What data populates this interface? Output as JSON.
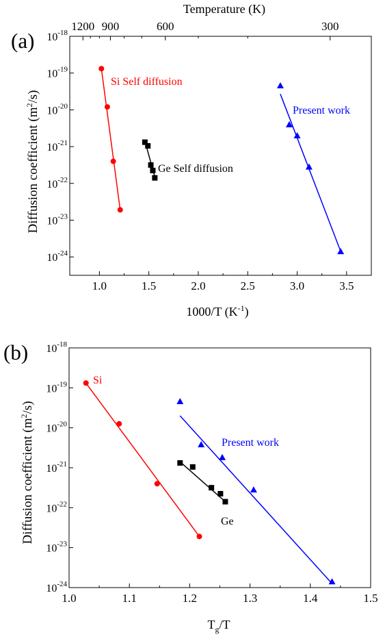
{
  "chart_data": [
    {
      "type": "scatter",
      "panel_label": "(a)",
      "title": "",
      "xlabel": "1000/T (K⁻¹)",
      "ylabel": "Diffusion coefficient (m²/s)",
      "top_axis_label": "Temperature (K)",
      "top_ticks": [
        {
          "label": "1200",
          "value": 1200
        },
        {
          "label": "900",
          "value": 900
        },
        {
          "label": "600",
          "value": 600
        },
        {
          "label": "300",
          "value": 300
        }
      ],
      "xlim": [
        0.7,
        3.75
      ],
      "ylim_log10": [
        -24.5,
        -18
      ],
      "yscale": "log",
      "xticks": [
        1.0,
        1.5,
        2.0,
        2.5,
        3.0,
        3.5
      ],
      "xtick_labels": [
        "1.0",
        "1.5",
        "2.0",
        "2.5",
        "3.0",
        "3.5"
      ],
      "yticks_exp": [
        -24,
        -23,
        -22,
        -21,
        -20,
        -19,
        -18
      ],
      "grid": false,
      "series": [
        {
          "label": "Si Self diffusion",
          "color": "#ff0000",
          "marker": "circle",
          "x": [
            1.02,
            1.08,
            1.14,
            1.21
          ],
          "y_exp": [
            -18.88,
            -19.92,
            -21.4,
            -22.72
          ],
          "fit_x": [
            1.02,
            1.21
          ],
          "fit_y_exp": [
            -18.88,
            -22.72
          ]
        },
        {
          "label": "Ge Self diffusion",
          "color": "#000000",
          "marker": "square",
          "x": [
            1.46,
            1.49,
            1.52,
            1.54,
            1.56
          ],
          "y_exp": [
            -20.88,
            -20.98,
            -21.5,
            -21.65,
            -21.85
          ],
          "fit_x": [
            1.46,
            1.56
          ],
          "fit_y_exp": [
            -20.85,
            -21.82
          ]
        },
        {
          "label": "Present work",
          "color": "#0000ff",
          "marker": "triangle",
          "x": [
            2.83,
            2.92,
            3.0,
            3.12,
            3.44
          ],
          "y_exp": [
            -19.34,
            -20.4,
            -20.7,
            -21.55,
            -23.85
          ],
          "fit_x": [
            2.83,
            3.44
          ],
          "fit_y_exp": [
            -19.57,
            -23.85
          ]
        }
      ]
    },
    {
      "type": "scatter",
      "panel_label": "(b)",
      "title": "",
      "xlabel_main": "T",
      "xlabel_sub": "g",
      "xlabel_tail": "/T",
      "ylabel": "Diffusion coefficient (m²/s)",
      "xlim": [
        1.0,
        1.5
      ],
      "ylim_log10": [
        -24,
        -18
      ],
      "yscale": "log",
      "xticks": [
        1.0,
        1.1,
        1.2,
        1.3,
        1.4,
        1.5
      ],
      "xtick_labels": [
        "1.0",
        "1.1",
        "1.2",
        "1.3",
        "1.4",
        "1.5"
      ],
      "yticks_exp": [
        -24,
        -23,
        -22,
        -21,
        -20,
        -19,
        -18
      ],
      "grid": false,
      "series": [
        {
          "label": "Si",
          "color": "#ff0000",
          "marker": "circle",
          "x": [
            1.028,
            1.083,
            1.146,
            1.216
          ],
          "y_exp": [
            -18.88,
            -19.9,
            -21.4,
            -22.72
          ],
          "fit_x": [
            1.028,
            1.216
          ],
          "fit_y_exp": [
            -18.88,
            -22.72
          ]
        },
        {
          "label": "Ge",
          "color": "#000000",
          "marker": "square",
          "x": [
            1.184,
            1.205,
            1.236,
            1.251,
            1.259
          ],
          "y_exp": [
            -20.88,
            -20.98,
            -21.5,
            -21.65,
            -21.85
          ],
          "fit_x": [
            1.184,
            1.259
          ],
          "fit_y_exp": [
            -20.85,
            -21.85
          ]
        },
        {
          "label": "Present work",
          "color": "#0000ff",
          "marker": "triangle",
          "x": [
            1.184,
            1.219,
            1.254,
            1.306,
            1.436
          ],
          "y_exp": [
            -19.34,
            -20.42,
            -20.74,
            -21.55,
            -23.85
          ],
          "fit_x": [
            1.184,
            1.436
          ],
          "fit_y_exp": [
            -19.7,
            -23.9
          ]
        }
      ]
    }
  ]
}
